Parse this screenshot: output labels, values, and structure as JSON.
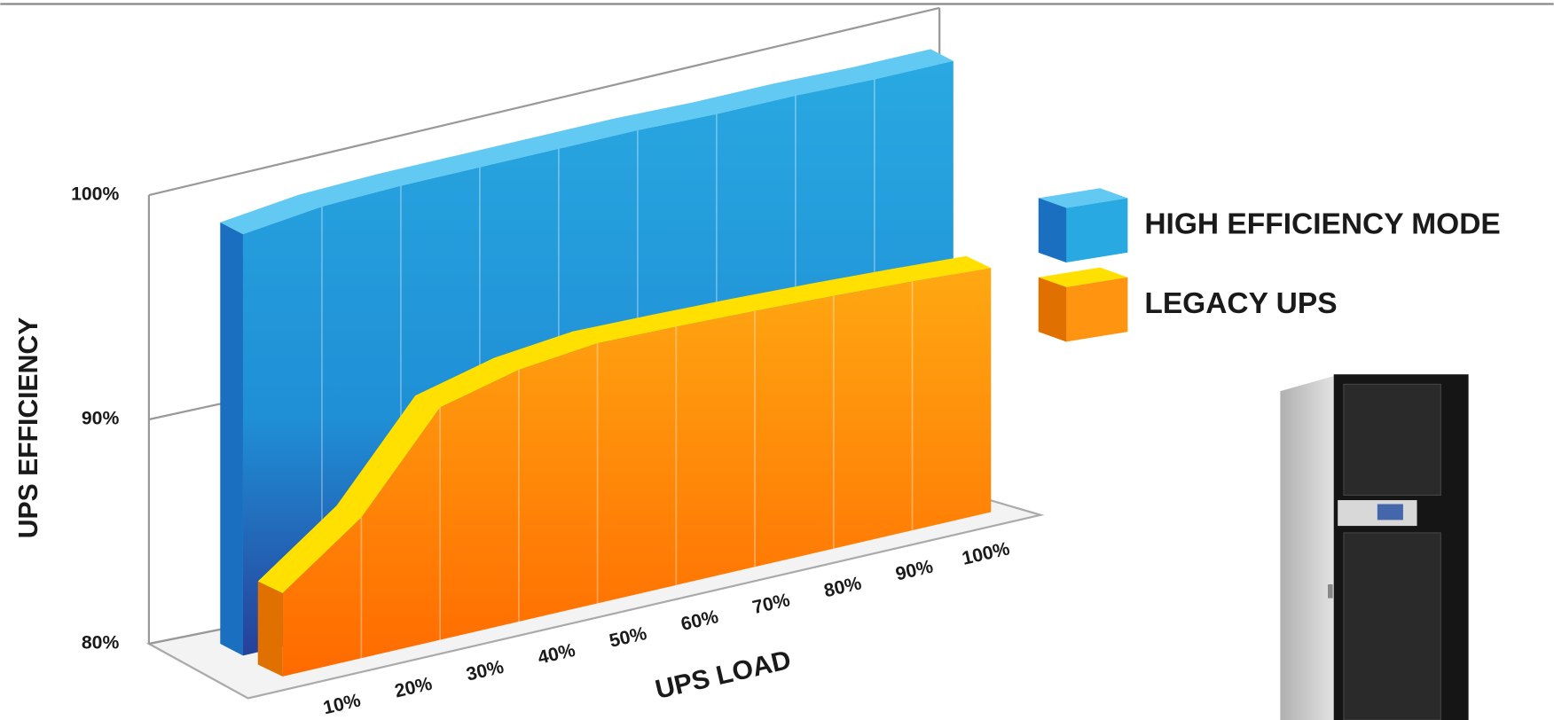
{
  "chart_data": {
    "type": "area",
    "x_label": "UPS LOAD",
    "y_label": "UPS EFFICIENCY",
    "categories": [
      "10%",
      "20%",
      "30%",
      "40%",
      "50%",
      "60%",
      "70%",
      "80%",
      "90%",
      "100%"
    ],
    "series": [
      {
        "name": "HIGH EFFICIENCY MODE",
        "color": "#29a9e1",
        "values": [
          98.5,
          99,
          99.2,
          99.3,
          99.4,
          99.5,
          99.5,
          99.6,
          99.6,
          99.7
        ]
      },
      {
        "name": "LEGACY UPS",
        "color": "#ff9410",
        "values": [
          84,
          87,
          92,
          93.5,
          94.5,
          95,
          95.5,
          96,
          96.5,
          97
        ]
      }
    ],
    "ylim": [
      80,
      100
    ],
    "yticks": [
      {
        "value": 80,
        "label": "80%"
      },
      {
        "value": 90,
        "label": "90%"
      },
      {
        "value": 100,
        "label": "100%"
      }
    ],
    "grid": true
  }
}
